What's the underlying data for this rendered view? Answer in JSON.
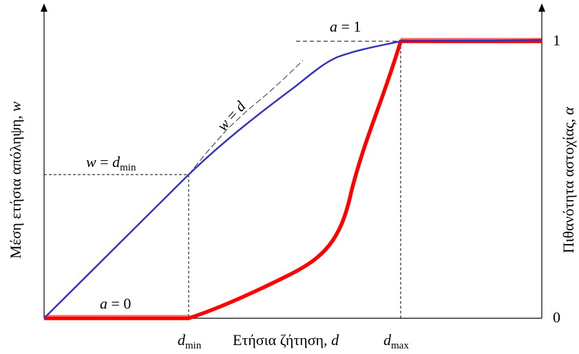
{
  "labels": {
    "y_left": "Μέση ετήσια απόληψη, ",
    "y_left_var": "w",
    "y_right": "Πιθανότητα αστοχίας, ",
    "y_right_var": "α",
    "x_axis": "Ετήσια ζήτηση, ",
    "x_axis_var": "d",
    "right_tick_1": "1",
    "right_tick_0": "0",
    "x_tick_dmin_main": "d",
    "x_tick_dmin_sub": "min",
    "x_tick_dmax_main": "d",
    "x_tick_dmax_sub": "max",
    "a1_var": "a",
    "a1_rest": " = 1",
    "a0_var": "a",
    "a0_rest": " = 0",
    "wdmin_var": "w",
    "wdmin_eq": " = ",
    "wdmin_d": "d",
    "wdmin_sub": "min",
    "wd_var1": "w",
    "wd_eq": " = ",
    "wd_var2": "d"
  },
  "colors": {
    "withdrawal_curve": "#3333bb",
    "failure_curve": "#ff0000",
    "axes": "#000000",
    "guides": "#000000"
  }
}
